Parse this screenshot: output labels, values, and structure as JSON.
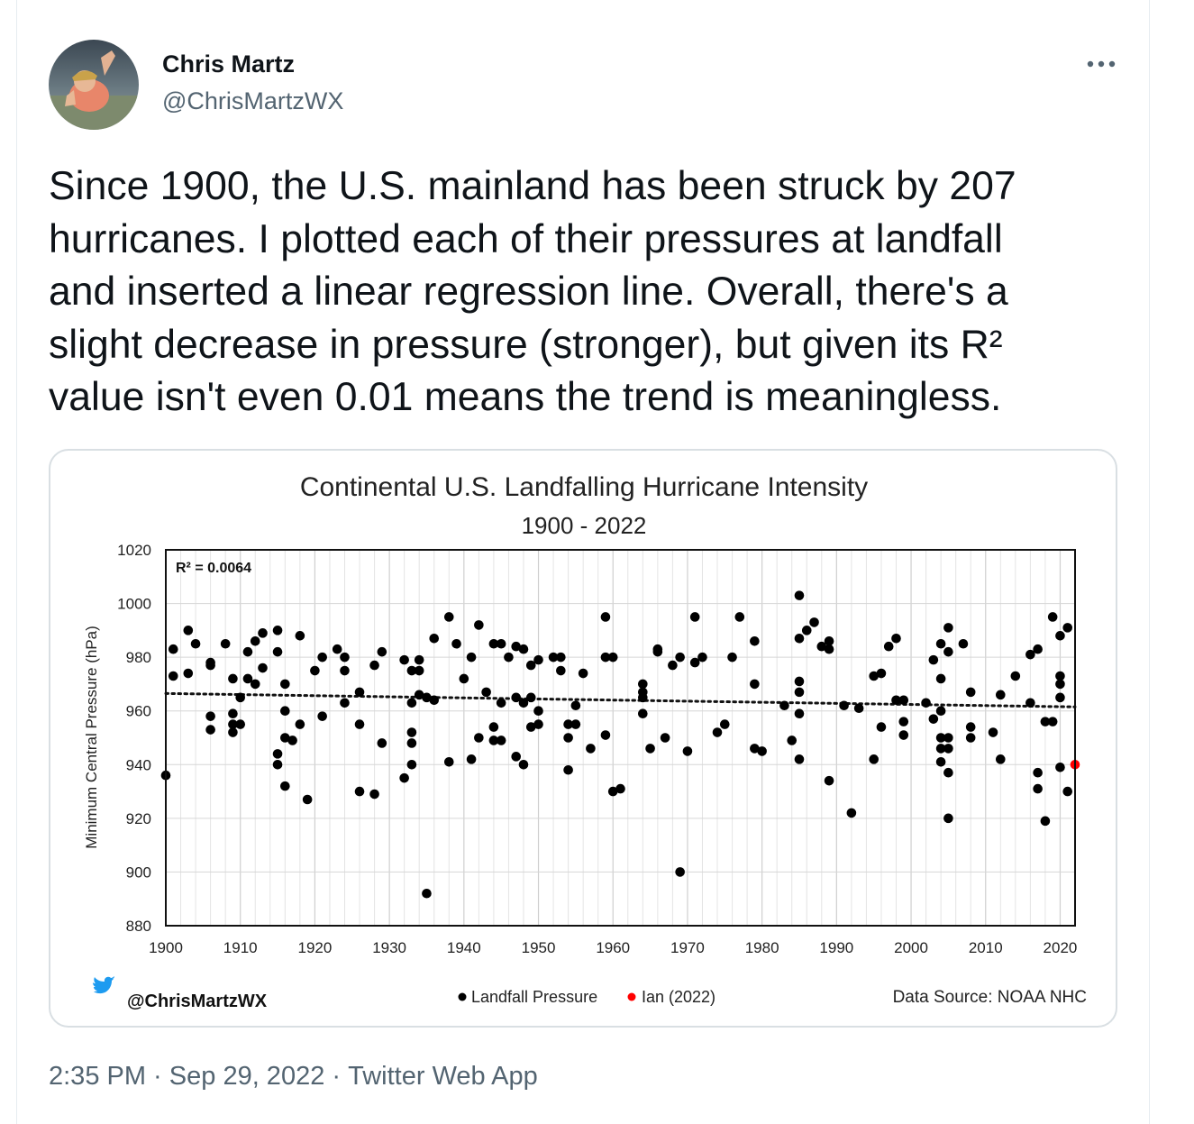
{
  "tweet": {
    "author_name": "Chris Martz",
    "author_handle": "@ChrisMartzWX",
    "text": "Since 1900, the U.S. mainland has been struck by 207\nhurricanes. I plotted each of their pressures at landfall\nand inserted a linear regression line. Overall, there's a\nslight decrease in pressure (stronger), but given its R²\nvalue isn't even 0.01 means the trend is meaningless.",
    "time": "2:35 PM",
    "date": "Sep 29, 2022",
    "source": "Twitter Web App",
    "separator": " · "
  },
  "colors": {
    "text_primary": "#0f1419",
    "text_secondary": "#536471",
    "twitter_blue": "#1d9bf0",
    "ian_red": "#ff0000"
  },
  "chart_data": {
    "type": "scatter",
    "title": "Continental U.S. Landfalling Hurricane Intensity",
    "subtitle": "1900 - 2022",
    "ylabel": "Minimum Central Pressure (hPa)",
    "xlabel": "",
    "xlim": [
      1900,
      2022
    ],
    "ylim": [
      880,
      1020
    ],
    "x_ticks": [
      1900,
      1910,
      1920,
      1930,
      1940,
      1950,
      1960,
      1970,
      1980,
      1990,
      2000,
      2010,
      2020
    ],
    "y_ticks": [
      880,
      900,
      920,
      940,
      960,
      980,
      1000,
      1020
    ],
    "grid": true,
    "annotation": "R² = 0.0064",
    "trendline": {
      "type": "linear",
      "start": [
        1900,
        966.5
      ],
      "end": [
        2022,
        961.5
      ]
    },
    "credit": "@ChrisMartzWX",
    "source": "Data Source: NOAA NHC",
    "legend": [
      {
        "label": "Landfall Pressure",
        "color": "#000000"
      },
      {
        "label": "Ian (2022)",
        "color": "#ff0000"
      }
    ],
    "series": [
      {
        "name": "Landfall Pressure",
        "color": "#000000",
        "points": [
          [
            1900,
            936
          ],
          [
            1901,
            973
          ],
          [
            1901,
            983
          ],
          [
            1903,
            990
          ],
          [
            1903,
            974
          ],
          [
            1904,
            985
          ],
          [
            1906,
            978
          ],
          [
            1906,
            977
          ],
          [
            1906,
            958
          ],
          [
            1906,
            953
          ],
          [
            1908,
            985
          ],
          [
            1909,
            959
          ],
          [
            1909,
            955
          ],
          [
            1909,
            952
          ],
          [
            1909,
            972
          ],
          [
            1910,
            965
          ],
          [
            1910,
            955
          ],
          [
            1911,
            972
          ],
          [
            1911,
            982
          ],
          [
            1912,
            970
          ],
          [
            1912,
            986
          ],
          [
            1913,
            976
          ],
          [
            1913,
            989
          ],
          [
            1915,
            990
          ],
          [
            1915,
            982
          ],
          [
            1915,
            944
          ],
          [
            1915,
            940
          ],
          [
            1916,
            970
          ],
          [
            1916,
            960
          ],
          [
            1916,
            950
          ],
          [
            1916,
            932
          ],
          [
            1917,
            949
          ],
          [
            1918,
            988
          ],
          [
            1918,
            955
          ],
          [
            1919,
            927
          ],
          [
            1920,
            975
          ],
          [
            1921,
            980
          ],
          [
            1921,
            958
          ],
          [
            1923,
            983
          ],
          [
            1924,
            980
          ],
          [
            1924,
            975
          ],
          [
            1924,
            963
          ],
          [
            1926,
            967
          ],
          [
            1926,
            955
          ],
          [
            1926,
            930
          ],
          [
            1928,
            977
          ],
          [
            1928,
            929
          ],
          [
            1929,
            982
          ],
          [
            1929,
            948
          ],
          [
            1932,
            979
          ],
          [
            1932,
            935
          ],
          [
            1933,
            975
          ],
          [
            1933,
            952
          ],
          [
            1933,
            948
          ],
          [
            1933,
            940
          ],
          [
            1933,
            963
          ],
          [
            1934,
            979
          ],
          [
            1934,
            975
          ],
          [
            1934,
            966
          ],
          [
            1935,
            892
          ],
          [
            1935,
            965
          ],
          [
            1936,
            987
          ],
          [
            1936,
            964
          ],
          [
            1938,
            995
          ],
          [
            1938,
            941
          ],
          [
            1939,
            985
          ],
          [
            1940,
            972
          ],
          [
            1941,
            980
          ],
          [
            1941,
            942
          ],
          [
            1942,
            992
          ],
          [
            1942,
            950
          ],
          [
            1943,
            967
          ],
          [
            1944,
            985
          ],
          [
            1944,
            954
          ],
          [
            1944,
            949
          ],
          [
            1945,
            985
          ],
          [
            1945,
            963
          ],
          [
            1945,
            949
          ],
          [
            1946,
            980
          ],
          [
            1947,
            984
          ],
          [
            1947,
            965
          ],
          [
            1947,
            943
          ],
          [
            1948,
            983
          ],
          [
            1948,
            963
          ],
          [
            1948,
            940
          ],
          [
            1949,
            977
          ],
          [
            1949,
            965
          ],
          [
            1949,
            954
          ],
          [
            1950,
            979
          ],
          [
            1950,
            960
          ],
          [
            1950,
            955
          ],
          [
            1952,
            980
          ],
          [
            1953,
            980
          ],
          [
            1953,
            975
          ],
          [
            1954,
            955
          ],
          [
            1954,
            950
          ],
          [
            1954,
            938
          ],
          [
            1955,
            962
          ],
          [
            1955,
            955
          ],
          [
            1956,
            974
          ],
          [
            1957,
            946
          ],
          [
            1959,
            995
          ],
          [
            1959,
            980
          ],
          [
            1959,
            951
          ],
          [
            1960,
            980
          ],
          [
            1960,
            930
          ],
          [
            1961,
            931
          ],
          [
            1964,
            970
          ],
          [
            1964,
            967
          ],
          [
            1964,
            965
          ],
          [
            1964,
            959
          ],
          [
            1965,
            946
          ],
          [
            1966,
            983
          ],
          [
            1966,
            982
          ],
          [
            1967,
            950
          ],
          [
            1968,
            977
          ],
          [
            1969,
            980
          ],
          [
            1969,
            900
          ],
          [
            1970,
            945
          ],
          [
            1971,
            995
          ],
          [
            1971,
            978
          ],
          [
            1972,
            980
          ],
          [
            1974,
            952
          ],
          [
            1975,
            955
          ],
          [
            1976,
            980
          ],
          [
            1977,
            995
          ],
          [
            1979,
            986
          ],
          [
            1979,
            970
          ],
          [
            1979,
            946
          ],
          [
            1980,
            945
          ],
          [
            1983,
            962
          ],
          [
            1984,
            949
          ],
          [
            1985,
            1003
          ],
          [
            1985,
            987
          ],
          [
            1985,
            971
          ],
          [
            1985,
            967
          ],
          [
            1985,
            959
          ],
          [
            1985,
            942
          ],
          [
            1986,
            990
          ],
          [
            1987,
            993
          ],
          [
            1988,
            984
          ],
          [
            1989,
            986
          ],
          [
            1989,
            983
          ],
          [
            1989,
            934
          ],
          [
            1991,
            962
          ],
          [
            1992,
            922
          ],
          [
            1993,
            961
          ],
          [
            1995,
            973
          ],
          [
            1995,
            942
          ],
          [
            1996,
            974
          ],
          [
            1996,
            954
          ],
          [
            1997,
            984
          ],
          [
            1998,
            987
          ],
          [
            1998,
            964
          ],
          [
            1999,
            964
          ],
          [
            1999,
            956
          ],
          [
            1999,
            951
          ],
          [
            2002,
            963
          ],
          [
            2003,
            979
          ],
          [
            2003,
            957
          ],
          [
            2004,
            985
          ],
          [
            2004,
            972
          ],
          [
            2004,
            960
          ],
          [
            2004,
            950
          ],
          [
            2004,
            946
          ],
          [
            2004,
            941
          ],
          [
            2005,
            991
          ],
          [
            2005,
            982
          ],
          [
            2005,
            950
          ],
          [
            2005,
            946
          ],
          [
            2005,
            937
          ],
          [
            2005,
            920
          ],
          [
            2007,
            985
          ],
          [
            2008,
            967
          ],
          [
            2008,
            954
          ],
          [
            2008,
            950
          ],
          [
            2011,
            952
          ],
          [
            2012,
            966
          ],
          [
            2012,
            942
          ],
          [
            2014,
            973
          ],
          [
            2016,
            981
          ],
          [
            2016,
            963
          ],
          [
            2017,
            983
          ],
          [
            2017,
            937
          ],
          [
            2017,
            931
          ],
          [
            2018,
            956
          ],
          [
            2018,
            919
          ],
          [
            2019,
            995
          ],
          [
            2019,
            956
          ],
          [
            2020,
            988
          ],
          [
            2020,
            973
          ],
          [
            2020,
            970
          ],
          [
            2020,
            965
          ],
          [
            2020,
            939
          ],
          [
            2021,
            991
          ],
          [
            2021,
            930
          ]
        ]
      },
      {
        "name": "Ian (2022)",
        "color": "#ff0000",
        "points": [
          [
            2022,
            940
          ]
        ]
      }
    ]
  }
}
